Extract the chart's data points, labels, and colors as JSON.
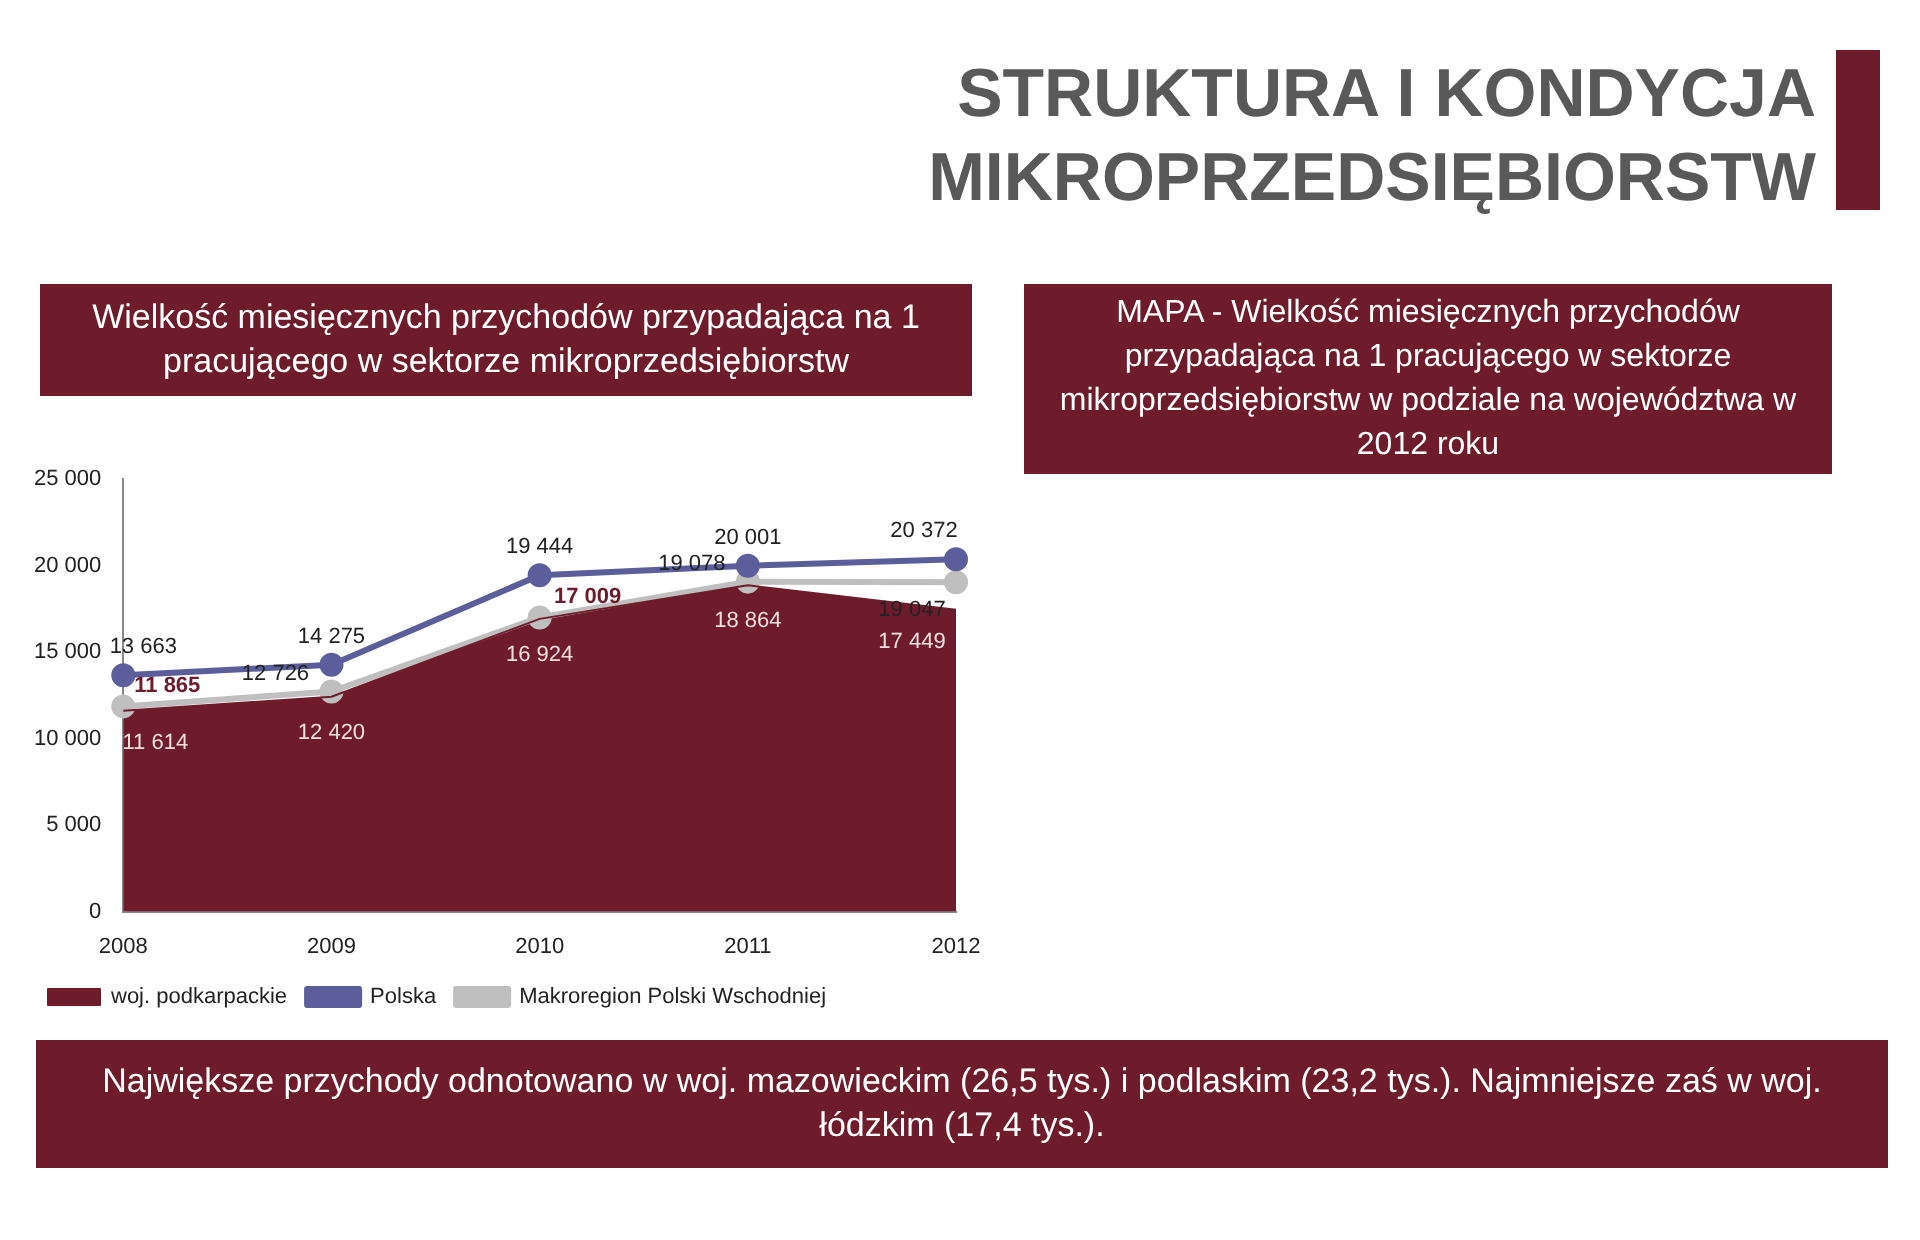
{
  "chart_data": {
    "type": "line",
    "title": "STRUKTURA I KONDYCJA MIKROPRZEDSIĘBIORSTW",
    "subtitle": "Wielkość miesięcznych przychodów przypadająca na 1 pracującego w sektorze mikroprzedsiębiorstw",
    "annotations": [
      "MAPA - Wielkość miesięcznych przychodów przypadająca na 1 pracującego w sektorze mikroprzedsiębiorstw w podziale na województwa w 2012 roku",
      "Największe przychody odnotowano w woj. mazowieckim (26,5 tys.) i podlaskim (23,2 tys.). Najmniejsze zaś w woj. łódzkim (17,4 tys.)."
    ],
    "categories": [
      "2008",
      "2009",
      "2010",
      "2011",
      "2012"
    ],
    "series": [
      {
        "name": "woj. podkarpackie",
        "type": "area",
        "color": "#6e1c2c",
        "marker": "none",
        "values": [
          11614,
          12420,
          16924,
          18864,
          17449
        ],
        "value_labels": [
          "11 614",
          "12 420",
          "16 924",
          "18 864",
          "17 449"
        ]
      },
      {
        "name": "Polska",
        "type": "line",
        "color": "#5b5e9a",
        "marker": "circle",
        "values": [
          13663,
          14275,
          19444,
          20001,
          20372
        ],
        "value_labels": [
          "13 663",
          "14 275",
          "19 444",
          "20 001",
          "20 372"
        ]
      },
      {
        "name": "Makroregion Polski Wschodniej",
        "type": "line",
        "color": "#bfbfbf",
        "marker": "circle",
        "values": [
          11865,
          12726,
          17009,
          19078,
          19047
        ],
        "value_labels": [
          "11 865",
          "12 726",
          "17 009",
          "19 078",
          "19 047"
        ]
      }
    ],
    "ylim": [
      0,
      25000
    ],
    "yticks": [
      {
        "value": 0,
        "label": "0"
      },
      {
        "value": 5000,
        "label": "5 000"
      },
      {
        "value": 10000,
        "label": "10 000"
      },
      {
        "value": 15000,
        "label": "15 000"
      },
      {
        "value": 20000,
        "label": "20 000"
      },
      {
        "value": 25000,
        "label": "25 000"
      }
    ],
    "grid": false,
    "legend": "bottom"
  }
}
